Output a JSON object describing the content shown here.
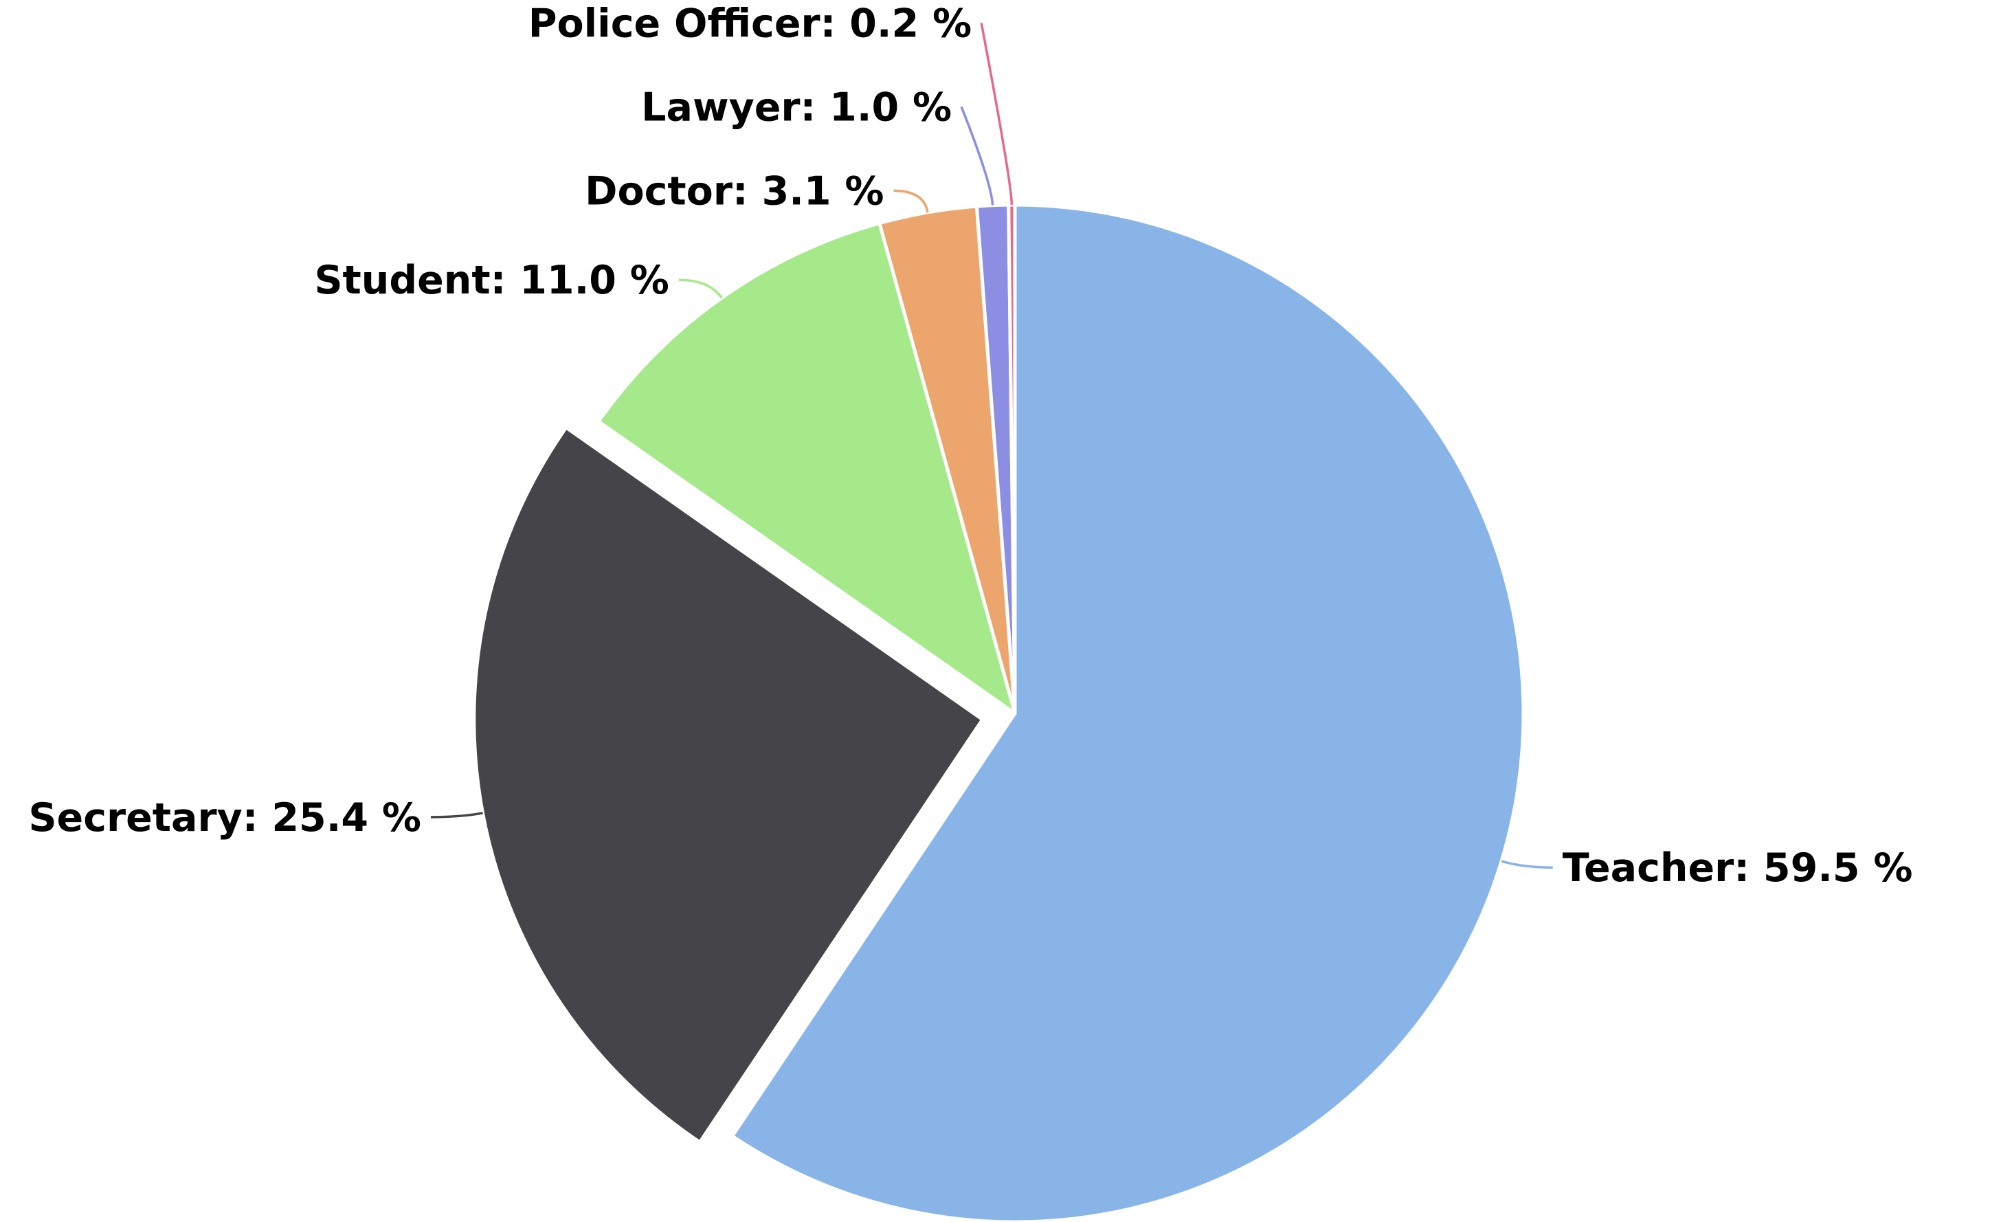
{
  "chart_data": {
    "type": "pie",
    "title": "",
    "series": [
      {
        "name": "",
        "slices": [
          {
            "label": "Teacher",
            "value": 59.5,
            "display": "59.5 %",
            "color": "#88b4e7",
            "exploded": false
          },
          {
            "label": "Secretary",
            "value": 25.4,
            "display": "25.4 %",
            "color": "#454549",
            "exploded": true
          },
          {
            "label": "Student",
            "value": 11.0,
            "display": "11.0 %",
            "color": "#a6e98a",
            "exploded": false
          },
          {
            "label": "Doctor",
            "value": 3.1,
            "display": "3.1 %",
            "color": "#eca66d",
            "exploded": false
          },
          {
            "label": "Lawyer",
            "value": 1.0,
            "display": "1.0 %",
            "color": "#8c8ee4",
            "exploded": false
          },
          {
            "label": "Police Officer",
            "value": 0.2,
            "display": "0.2 %",
            "color": "#e36a88",
            "exploded": false
          }
        ]
      }
    ],
    "start_angle": "12 o'clock",
    "direction": "clockwise",
    "legend": "none",
    "data_labels": "outside with connectors"
  }
}
